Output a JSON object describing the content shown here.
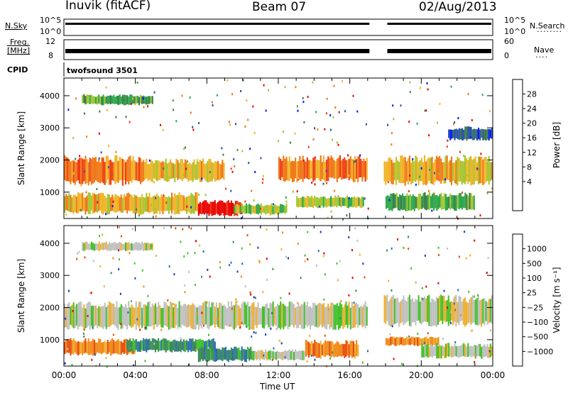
{
  "header": {
    "station": "Inuvik (fitACF)",
    "beam": "Beam 07",
    "date": "02/Aug/2013"
  },
  "aux_panels": {
    "nsky_label": "N.Sky",
    "nsky_ticks": [
      "10^5",
      "10^0"
    ],
    "nsearch_label": "N.Search",
    "nsearch_ticks": [
      "10^5",
      "10^0"
    ],
    "freq_label_1": "Freq.",
    "freq_label_2": "[MHz]",
    "freq_ticks": [
      "12",
      "8"
    ],
    "nave_label": "Nave",
    "nave_ticks": [
      "60",
      "0"
    ],
    "cpid_label": "CPID",
    "cpid_value": "twofsound 3501"
  },
  "colors": {
    "power": [
      "#0018ff",
      "#2a52a8",
      "#3a7a4a",
      "#2ea64a",
      "#a0c630",
      "#f0b428",
      "#f07818",
      "#f03c14",
      "#e80000"
    ],
    "velocity": [
      "#1c3cc8",
      "#2a6db0",
      "#3a8a5a",
      "#44c02a",
      "#c0c0c0",
      "#f0b030",
      "#f08a1a",
      "#e84c10",
      "#e80000"
    ]
  },
  "chart_data": [
    {
      "type": "heatmap",
      "name": "power",
      "ylabel": "Slant Range [km]",
      "ylim": [
        180,
        4550
      ],
      "yticks": [
        1000,
        2000,
        3000,
        4000
      ],
      "colorbar_label": "Power [dB]",
      "colorbar_ticks": [
        "28",
        "24",
        "20",
        "16",
        "12",
        "8",
        "4"
      ],
      "xlim_hours": [
        0,
        24
      ],
      "bands": [
        {
          "t0": 0,
          "t1": 4.5,
          "r0": 1200,
          "r1": 2150,
          "level": 6
        },
        {
          "t0": 0,
          "t1": 7.5,
          "r0": 300,
          "r1": 1000,
          "level": 5
        },
        {
          "t0": 1,
          "t1": 5,
          "r0": 3700,
          "r1": 4050,
          "level": 3
        },
        {
          "t0": 4.5,
          "t1": 9,
          "r0": 1300,
          "r1": 2050,
          "level": 5
        },
        {
          "t0": 7.5,
          "t1": 10,
          "r0": 250,
          "r1": 750,
          "level": 8
        },
        {
          "t0": 9.5,
          "t1": 12.5,
          "r0": 300,
          "r1": 650,
          "level": 4
        },
        {
          "t0": 12,
          "t1": 17,
          "r0": 1300,
          "r1": 2150,
          "level": 6
        },
        {
          "t0": 13,
          "t1": 16.8,
          "r0": 500,
          "r1": 900,
          "level": 4
        },
        {
          "t0": 17.8,
          "t1": 24,
          "r0": 1200,
          "r1": 2150,
          "level": 5
        },
        {
          "t0": 18,
          "t1": 23,
          "r0": 400,
          "r1": 1000,
          "level": 3
        },
        {
          "t0": 21.5,
          "t1": 24,
          "r0": 2600,
          "r1": 3050,
          "level": 1
        }
      ]
    },
    {
      "type": "heatmap",
      "name": "velocity",
      "ylabel": "Slant Range [km]",
      "ylim": [
        180,
        4550
      ],
      "yticks": [
        1000,
        2000,
        3000,
        4000
      ],
      "colorbar_label": "Velocity [m s⁻¹]",
      "colorbar_ticks": [
        "1000",
        "500",
        "100",
        "25",
        "−25",
        "−100",
        "−500",
        "−1000"
      ],
      "xlim_hours": [
        0,
        24
      ],
      "bands": [
        {
          "t0": 0,
          "t1": 17,
          "r0": 1300,
          "r1": 2200,
          "level": 4
        },
        {
          "t0": 17.8,
          "t1": 24,
          "r0": 1400,
          "r1": 2400,
          "level": 4
        },
        {
          "t0": 0,
          "t1": 4,
          "r0": 500,
          "r1": 1050,
          "level": 6
        },
        {
          "t0": 3.5,
          "t1": 8.5,
          "r0": 600,
          "r1": 1050,
          "level": 2
        },
        {
          "t0": 7.5,
          "t1": 10.5,
          "r0": 300,
          "r1": 800,
          "level": 2
        },
        {
          "t0": 10.5,
          "t1": 13.5,
          "r0": 350,
          "r1": 700,
          "level": 4
        },
        {
          "t0": 13.5,
          "t1": 16.5,
          "r0": 400,
          "r1": 1000,
          "level": 6
        },
        {
          "t0": 18,
          "t1": 21,
          "r0": 800,
          "r1": 1100,
          "level": 6
        },
        {
          "t0": 20,
          "t1": 24,
          "r0": 400,
          "r1": 900,
          "level": 4
        },
        {
          "t0": 1,
          "t1": 5,
          "r0": 3750,
          "r1": 4050,
          "level": 4
        }
      ]
    }
  ],
  "time_axis": {
    "label": "Time UT",
    "ticks": [
      "00:00",
      "04:00",
      "08:00",
      "12:00",
      "16:00",
      "20:00",
      "00:00"
    ]
  }
}
